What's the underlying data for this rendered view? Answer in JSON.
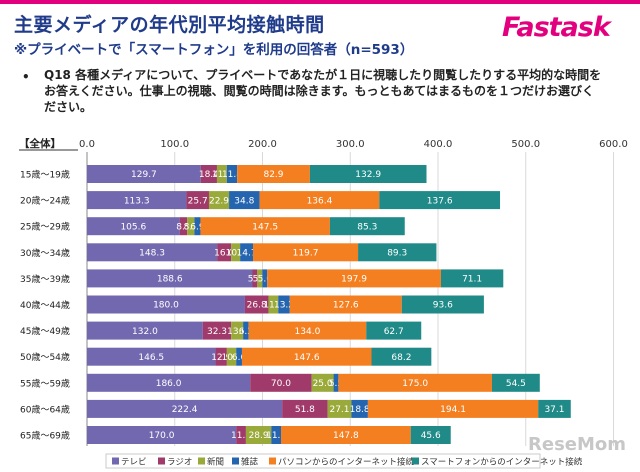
{
  "header": {
    "title": "主要メディアの年代別平均接触時間",
    "subtitle": "※プライベートで「スマートフォン」を利用の回答者（n=593）",
    "logo_text": "Fastask"
  },
  "question": {
    "bullet": "•",
    "text": "Q18 各種メディアについて、プライベートであなたが１日に視聴したり閲覧したりする平均的な時間をお答えください。仕事上の視聴、閲覧の時間は除きます。もっともあてはまるものを１つだけお選びください。"
  },
  "watermark": "ReseMom",
  "chart_data": {
    "type": "bar",
    "orientation": "horizontal",
    "stacked": true,
    "group_label": "【全体】",
    "xlim": [
      0,
      600
    ],
    "xticks": [
      "0.0",
      "100.0",
      "200.0",
      "300.0",
      "400.0",
      "500.0",
      "600.0"
    ],
    "xtick_values": [
      0,
      100,
      200,
      300,
      400,
      500,
      600
    ],
    "grid": true,
    "legend_position": "bottom",
    "categories": [
      "15歳～19歳",
      "20歳～24歳",
      "25歳～29歳",
      "30歳～34歳",
      "35歳～39歳",
      "40歳～44歳",
      "45歳～49歳",
      "50歳～54歳",
      "55歳～59歳",
      "60歳～64歳",
      "65歳～69歳"
    ],
    "series": [
      {
        "name": "テレビ",
        "color": "#7268b0",
        "values": [
          129.7,
          113.3,
          105.6,
          148.3,
          188.6,
          180.0,
          132.0,
          146.5,
          186.0,
          222.4,
          170.0
        ],
        "labels": [
          "129.7",
          "113.3",
          "105.6",
          "148.3",
          "188.6",
          "180.0",
          "132.0",
          "146.5",
          "186.0",
          "222.4",
          "170.0"
        ]
      },
      {
        "name": "ラジオ",
        "color": "#a03a6a",
        "values": [
          18.4,
          25.7,
          8.5,
          16.0,
          5.5,
          26.8,
          32.3,
          12.9,
          70.0,
          51.8,
          11.1
        ],
        "labels": [
          "18.4",
          "25.7",
          "8.5",
          "16.0",
          "5.5",
          "26.8",
          "32.3",
          "12.9",
          "70.0",
          "51.8",
          "11.1"
        ]
      },
      {
        "name": "新聞",
        "color": "#9aaa3a",
        "values": [
          11.2,
          22.9,
          8.3,
          10.2,
          5.7,
          11.1,
          13.6,
          10.6,
          25.0,
          27.1,
          28.9
        ],
        "labels": [
          "11.2",
          "22.9",
          "8.3",
          "10.2",
          "5.7",
          "11.1",
          "13.6",
          "10.6",
          "25.0",
          "27.1",
          "28.9"
        ]
      },
      {
        "name": "雑誌",
        "color": "#2565b0",
        "values": [
          11.8,
          34.8,
          6.9,
          14.7,
          5.6,
          13.2,
          6.3,
          6.6,
          5.5,
          18.8,
          11.1
        ],
        "labels": [
          "11.8",
          "34.8",
          "6.9",
          "14.7",
          "5.6",
          "13.2",
          "6.3",
          "6.6",
          "5.5",
          "18.8",
          "11.1"
        ]
      },
      {
        "name": "パソコンからのインターネット接続",
        "color": "#f47f20",
        "values": [
          82.9,
          136.4,
          147.5,
          119.7,
          197.9,
          127.6,
          134.0,
          147.6,
          175.0,
          194.1,
          147.8
        ],
        "labels": [
          "82.9",
          "136.4",
          "147.5",
          "119.7",
          "197.9",
          "127.6",
          "134.0",
          "147.6",
          "175.0",
          "194.1",
          "147.8"
        ]
      },
      {
        "name": "スマートフォンからのインターネット接続",
        "color": "#1f8a87",
        "values": [
          132.9,
          137.6,
          85.3,
          89.3,
          71.1,
          93.6,
          62.7,
          68.2,
          54.5,
          37.1,
          45.6
        ],
        "labels": [
          "132.9",
          "137.6",
          "85.3",
          "89.3",
          "71.1",
          "93.6",
          "62.7",
          "68.2",
          "54.5",
          "37.1",
          "45.6"
        ]
      }
    ]
  }
}
